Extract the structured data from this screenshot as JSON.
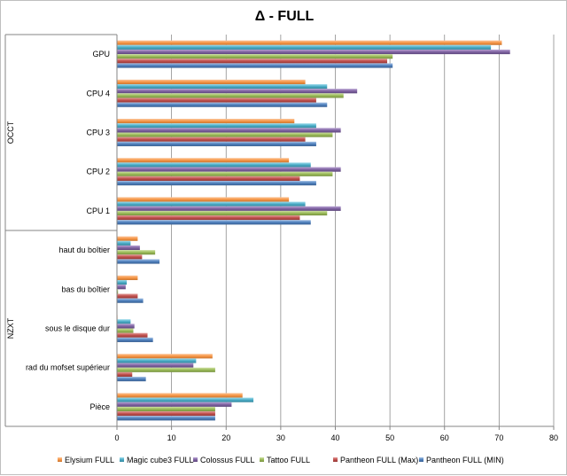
{
  "chart_data": {
    "type": "bar",
    "orientation": "horizontal",
    "title": "Δ - FULL",
    "xlim": [
      0,
      80
    ],
    "xticks": [
      0,
      10,
      20,
      30,
      40,
      50,
      60,
      70,
      80
    ],
    "grid": true,
    "legend_position": "bottom",
    "groups": [
      {
        "label": "OCCT",
        "categories": [
          "GPU",
          "CPU 4",
          "CPU 3",
          "CPU 2",
          "CPU 1"
        ]
      },
      {
        "label": "NZXT",
        "categories": [
          "haut du boîtier",
          "bas du boîtier",
          "sous le disque dur",
          "rad du mofset supérieur",
          "Pièce"
        ]
      }
    ],
    "categories": [
      "GPU",
      "CPU 4",
      "CPU 3",
      "CPU 2",
      "CPU 1",
      "haut du boîtier",
      "bas du boîtier",
      "sous le disque dur",
      "rad du mofset supérieur",
      "Pièce"
    ],
    "series": [
      {
        "name": "Elysium FULL",
        "color": "#f79646",
        "values": [
          70.5,
          34.5,
          32.5,
          31.5,
          31.5,
          3.8,
          3.8,
          0.1,
          17.5,
          23
        ]
      },
      {
        "name": "Magic cube3 FULL",
        "color": "#4bacc6",
        "values": [
          68.5,
          38.5,
          36.5,
          35.5,
          34.5,
          2.5,
          1.8,
          2.5,
          14.5,
          25
        ]
      },
      {
        "name": "Colossus FULL",
        "color": "#8064a2",
        "values": [
          72,
          44,
          41,
          41,
          41,
          4.2,
          1.6,
          3.2,
          14,
          21
        ]
      },
      {
        "name": "Tattoo FULL",
        "color": "#9bbb59",
        "values": [
          50.5,
          41.5,
          39.5,
          39.5,
          38.5,
          7,
          0.2,
          3,
          18,
          18
        ]
      },
      {
        "name": "Pantheon FULL (Max)",
        "color": "#c0504d",
        "values": [
          49.5,
          36.5,
          34.5,
          33.5,
          33.5,
          4.6,
          3.8,
          5.6,
          2.8,
          18
        ]
      },
      {
        "name": "Pantheon FULL (MIN)",
        "color": "#4f81bd",
        "values": [
          50.5,
          38.5,
          36.5,
          36.5,
          35.5,
          7.8,
          4.8,
          6.6,
          5.3,
          18
        ]
      }
    ]
  }
}
